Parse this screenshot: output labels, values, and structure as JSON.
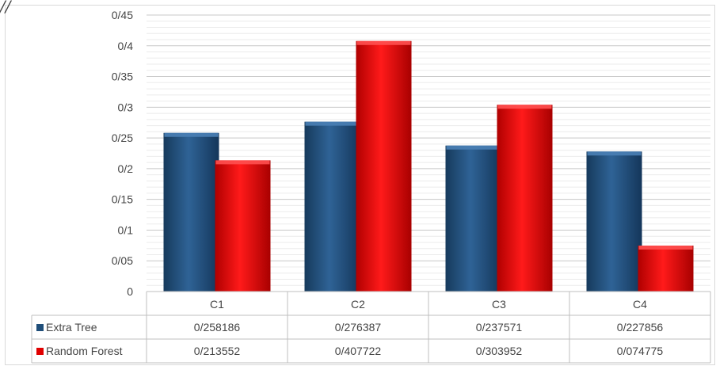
{
  "chart_data": {
    "type": "bar",
    "categories": [
      "C1",
      "C2",
      "C3",
      "C4"
    ],
    "series": [
      {
        "name": "Extra Tree",
        "values": [
          0.258186,
          0.276387,
          0.237571,
          0.227856
        ],
        "value_labels": [
          "0/258186",
          "0/276387",
          "0/237571",
          "0/227856"
        ],
        "color": "#1f4e79"
      },
      {
        "name": "Random Forest",
        "values": [
          0.213552,
          0.407722,
          0.303952,
          0.074775
        ],
        "value_labels": [
          "0/213552",
          "0/407722",
          "0/303952",
          "0/074775"
        ],
        "color": "#e00000"
      }
    ],
    "y_ticks": [
      0,
      0.05,
      0.1,
      0.15,
      0.2,
      0.25,
      0.3,
      0.35,
      0.4,
      0.45
    ],
    "y_tick_labels": [
      "0",
      "0/05",
      "0/1",
      "0/15",
      "0/2",
      "0/25",
      "0/3",
      "0/35",
      "0/4",
      "0/45"
    ],
    "ylim": [
      0,
      0.45
    ],
    "grid": true,
    "legend": "data-table",
    "title": "",
    "xlabel": "",
    "ylabel": ""
  }
}
